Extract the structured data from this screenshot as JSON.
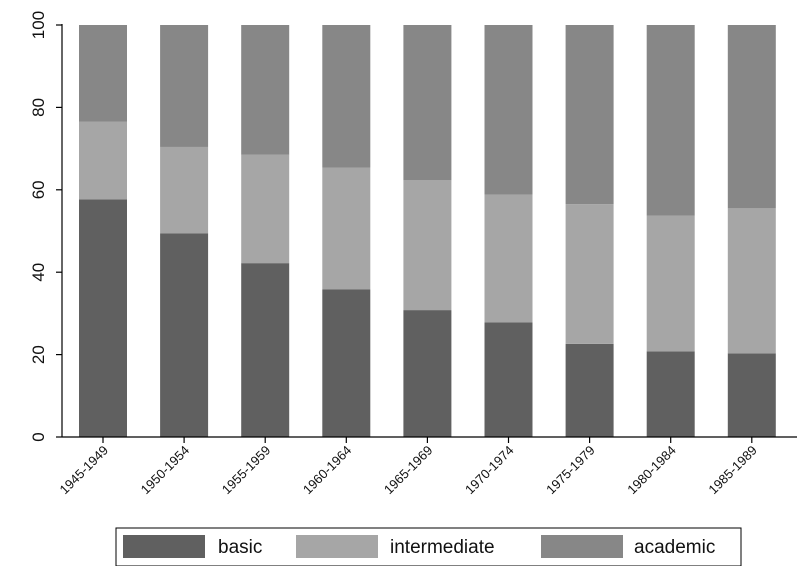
{
  "chart_data": {
    "type": "bar",
    "stacked": true,
    "categories": [
      "1945-1949",
      "1950-1954",
      "1955-1959",
      "1960-1964",
      "1965-1969",
      "1970-1974",
      "1975-1979",
      "1980-1984",
      "1985-1989"
    ],
    "series": [
      {
        "name": "basic",
        "color": "#606060",
        "values": [
          57.7,
          49.4,
          42.2,
          35.8,
          30.8,
          27.8,
          22.6,
          20.8,
          20.3
        ]
      },
      {
        "name": "intermediate",
        "color": "#a6a6a6",
        "values": [
          18.8,
          21.0,
          26.3,
          29.6,
          31.5,
          31.0,
          33.9,
          32.9,
          35.2
        ]
      },
      {
        "name": "academic",
        "color": "#878787",
        "values": [
          23.5,
          29.6,
          31.5,
          34.6,
          37.7,
          41.2,
          43.5,
          46.3,
          44.5
        ]
      }
    ],
    "ylim": [
      0,
      100
    ],
    "yticks": [
      0,
      20,
      40,
      60,
      80,
      100
    ],
    "ytick_labels": [
      "0",
      "20",
      "40",
      "60",
      "80",
      "100"
    ],
    "title": "",
    "xlabel": "",
    "ylabel": "",
    "grid": false,
    "legend_position": "bottom"
  }
}
